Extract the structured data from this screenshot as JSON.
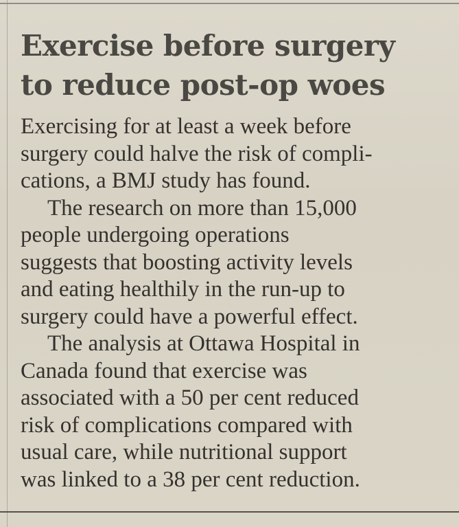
{
  "article": {
    "headline": [
      "Exercise before surgery",
      "to reduce post-op woes"
    ],
    "paragraphs": [
      {
        "lines": [
          "Exercising for at least a week before",
          "surgery could halve the risk of compli-",
          "cations, a BMJ study has found."
        ]
      },
      {
        "lines": [
          "The research on more than 15,000",
          "people undergoing operations",
          "suggests that boosting activity levels",
          "and eating healthily in the run-up to",
          "surgery could have a powerful effect."
        ]
      },
      {
        "lines": [
          "The analysis at Ottawa Hospital in",
          "Canada found that exercise was",
          "associated with a 50 per cent reduced",
          "risk of complications compared with",
          "usual care, while nutritional support",
          "was linked to a 38 per cent reduction."
        ]
      }
    ]
  },
  "colors": {
    "paper": "#d9d4c6",
    "ink": "#34322e",
    "headline_ink": "#4a4843"
  }
}
